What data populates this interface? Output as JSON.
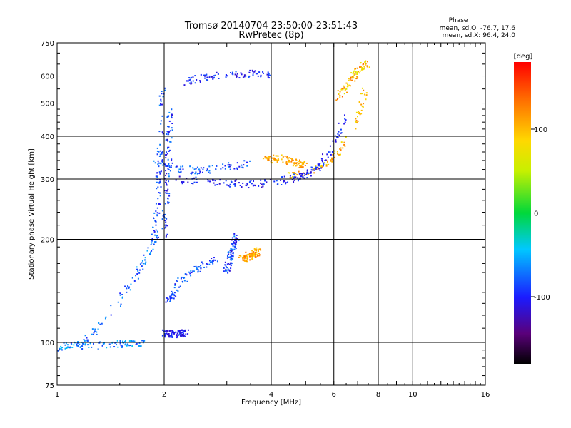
{
  "chart_data": {
    "type": "scatter",
    "title": "Tromsø 20140704 23:50:00-23:51:43",
    "subtitle": "RwPretec (8p)",
    "xlabel": "Frequency [MHz]",
    "ylabel": "Stationary phase Virtual Height [km]",
    "x_scale": "log",
    "y_scale": "log",
    "xlim": [
      1,
      16
    ],
    "ylim": [
      75,
      750
    ],
    "x_ticks": [
      "1",
      "2",
      "4",
      "6",
      "8",
      "10",
      "16"
    ],
    "x_tick_values": [
      1,
      2,
      4,
      6,
      8,
      10,
      16
    ],
    "y_ticks": [
      "750",
      "600",
      "500",
      "400",
      "300",
      "200",
      "100",
      "75"
    ],
    "y_tick_values": [
      750,
      600,
      500,
      400,
      300,
      200,
      100,
      75
    ],
    "grid": true,
    "colorbar": {
      "label": "[deg]",
      "ticks": [
        "100",
        "0",
        "-100"
      ],
      "tick_values": [
        100,
        0,
        -100
      ],
      "range": [
        -180,
        180
      ]
    },
    "info": {
      "heading": "Phase",
      "line1": "mean, sd,O: -76.7, 17.6",
      "line2": "mean, sd,X:  96.4, 24.0"
    },
    "traces": [
      {
        "freq": [
          1.0,
          1.1,
          1.3,
          1.5,
          1.65,
          1.75
        ],
        "height": [
          96,
          98,
          98,
          99,
          100,
          100
        ],
        "phase_range": [
          -90,
          -40
        ]
      },
      {
        "freq": [
          1.0,
          1.2,
          1.4,
          1.6,
          1.75,
          1.9
        ],
        "height": [
          95,
          100,
          120,
          145,
          170,
          200
        ],
        "phase_range": [
          -100,
          -50
        ]
      },
      {
        "freq": [
          1.88,
          1.92,
          1.95,
          1.98
        ],
        "height": [
          200,
          260,
          360,
          560
        ],
        "phase_range": [
          -110,
          -60
        ]
      },
      {
        "freq": [
          2.0,
          2.05,
          2.08
        ],
        "height": [
          200,
          300,
          480
        ],
        "phase_range": [
          -120,
          -60
        ]
      },
      {
        "freq": [
          2.1,
          2.5,
          3.0,
          3.5,
          4.0,
          4.5
        ],
        "height": [
          300,
          296,
          292,
          290,
          292,
          300
        ],
        "phase_range": [
          -120,
          -80
        ]
      },
      {
        "freq": [
          1.9,
          2.2,
          2.5,
          3.0,
          3.5
        ],
        "height": [
          335,
          320,
          318,
          325,
          335
        ],
        "phase_range": [
          -110,
          -60
        ]
      },
      {
        "freq": [
          3.8,
          4.2,
          4.6,
          5.0
        ],
        "height": [
          340,
          345,
          335,
          330
        ],
        "phase_range": [
          90,
          130
        ]
      },
      {
        "freq": [
          4.5,
          5.0,
          5.5,
          6.0,
          6.5,
          7.0,
          7.4
        ],
        "height": [
          305,
          312,
          325,
          345,
          385,
          450,
          560
        ],
        "phase_range": [
          70,
          130
        ]
      },
      {
        "freq": [
          4.5,
          5.0,
          5.5,
          6.0,
          6.5
        ],
        "height": [
          300,
          310,
          330,
          380,
          460
        ],
        "phase_range": [
          -120,
          -80
        ]
      },
      {
        "freq": [
          2.3,
          2.5,
          2.8,
          3.2,
          3.6,
          4.0
        ],
        "height": [
          575,
          590,
          600,
          605,
          610,
          600
        ],
        "phase_range": [
          -120,
          -80
        ]
      },
      {
        "freq": [
          2.05,
          2.2,
          2.5,
          2.8
        ],
        "height": [
          130,
          150,
          165,
          175
        ],
        "phase_range": [
          -110,
          -60
        ]
      },
      {
        "freq": [
          2.0,
          2.1,
          2.2,
          2.3
        ],
        "height": [
          106,
          106,
          106,
          107
        ],
        "phase_range": [
          -120,
          -80
        ]
      },
      {
        "freq": [
          3.0,
          3.1,
          3.2
        ],
        "height": [
          160,
          185,
          205
        ],
        "phase_range": [
          -120,
          -60
        ]
      },
      {
        "freq": [
          3.3,
          3.5,
          3.7
        ],
        "height": [
          175,
          180,
          185
        ],
        "phase_range": [
          80,
          140
        ]
      },
      {
        "freq": [
          6.2,
          6.5,
          6.8,
          7.2,
          7.5
        ],
        "height": [
          520,
          560,
          600,
          640,
          650
        ],
        "phase_range": [
          60,
          140
        ]
      }
    ]
  }
}
